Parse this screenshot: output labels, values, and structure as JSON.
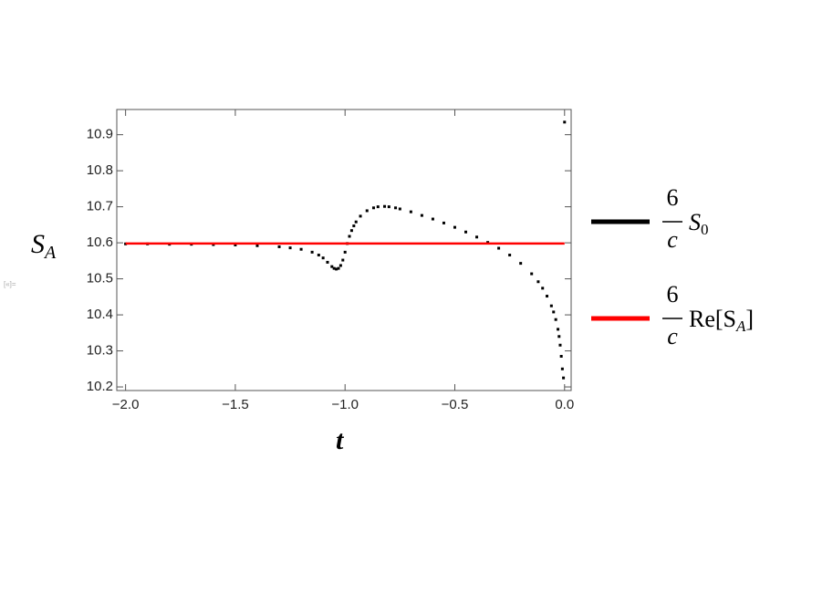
{
  "chart_data": {
    "type": "scatter",
    "out_label": "[«]=",
    "x_label": "t",
    "y_label": {
      "text": "S",
      "subscript": "A"
    },
    "xlim": [
      -2.04,
      0.03
    ],
    "ylim": [
      10.19,
      10.97
    ],
    "xticks": [
      {
        "value": -2.0,
        "label": "−2.0"
      },
      {
        "value": -1.5,
        "label": "−1.5"
      },
      {
        "value": -1.0,
        "label": "−1.0"
      },
      {
        "value": -0.5,
        "label": "−0.5"
      },
      {
        "value": 0.0,
        "label": "0.0"
      }
    ],
    "yticks": [
      10.2,
      10.3,
      10.4,
      10.5,
      10.6,
      10.7,
      10.8,
      10.9
    ],
    "series": [
      {
        "style": "points",
        "color": "#000000",
        "legend": {
          "numerator": "6",
          "denominator": "c",
          "text": "S",
          "subscript": "0"
        },
        "x": [
          -2.0,
          -1.9,
          -1.8,
          -1.7,
          -1.6,
          -1.5,
          -1.4,
          -1.3,
          -1.25,
          -1.2,
          -1.15,
          -1.12,
          -1.1,
          -1.08,
          -1.06,
          -1.05,
          -1.04,
          -1.03,
          -1.02,
          -1.01,
          -1.0,
          -0.99,
          -0.98,
          -0.97,
          -0.96,
          -0.95,
          -0.93,
          -0.9,
          -0.87,
          -0.85,
          -0.82,
          -0.8,
          -0.77,
          -0.75,
          -0.7,
          -0.65,
          -0.6,
          -0.55,
          -0.5,
          -0.45,
          -0.4,
          -0.35,
          -0.3,
          -0.25,
          -0.2,
          -0.15,
          -0.12,
          -0.1,
          -0.08,
          -0.06,
          -0.05,
          -0.04,
          -0.03,
          -0.025,
          -0.02,
          -0.015,
          -0.01,
          -0.005,
          0.0
        ],
        "values": [
          10.597,
          10.597,
          10.596,
          10.596,
          10.595,
          10.594,
          10.592,
          10.589,
          10.586,
          10.582,
          10.574,
          10.566,
          10.558,
          10.546,
          10.534,
          10.529,
          10.527,
          10.529,
          10.537,
          10.552,
          10.574,
          10.598,
          10.618,
          10.634,
          10.647,
          10.658,
          10.674,
          10.689,
          10.697,
          10.7,
          10.701,
          10.7,
          10.697,
          10.694,
          10.686,
          10.676,
          10.666,
          10.655,
          10.643,
          10.63,
          10.616,
          10.601,
          10.585,
          10.566,
          10.543,
          10.514,
          10.492,
          10.474,
          10.452,
          10.425,
          10.408,
          10.387,
          10.36,
          10.34,
          10.316,
          10.285,
          10.25,
          10.225,
          10.935
        ]
      },
      {
        "style": "line",
        "color": "#ff0000",
        "legend": {
          "numerator": "6",
          "denominator": "c",
          "text": "Re[S",
          "subscript": "A",
          "suffix": "]"
        },
        "x": [
          -2.0,
          0.0
        ],
        "values": [
          10.598,
          10.598
        ]
      }
    ]
  }
}
